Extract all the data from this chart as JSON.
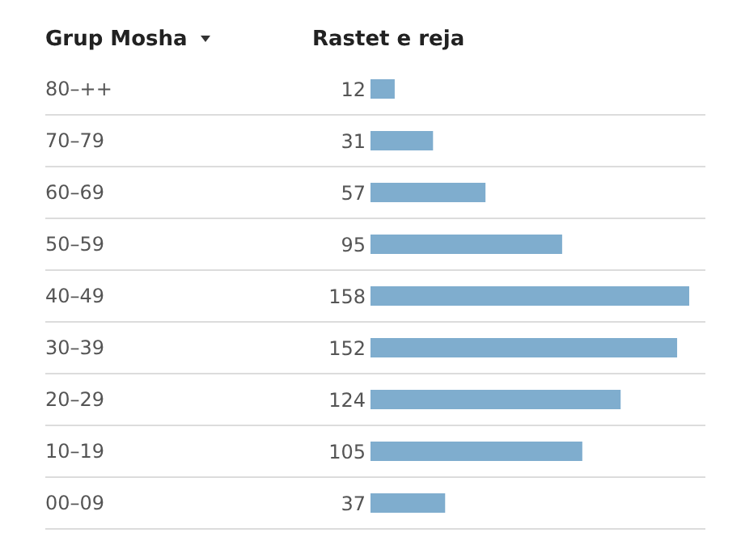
{
  "chart_data": {
    "type": "bar",
    "orientation": "horizontal",
    "ylabel": "Grup Mosha",
    "xlabel": "Rastet e reja",
    "categories": [
      "80–++",
      "70–79",
      "60–69",
      "50–59",
      "40–49",
      "30–39",
      "20–29",
      "10–19",
      "00–09"
    ],
    "values": [
      12,
      31,
      57,
      95,
      158,
      152,
      124,
      105,
      37
    ],
    "color": "#7fadce",
    "data_labels": true,
    "grid": "y",
    "tick_labels": "y"
  }
}
